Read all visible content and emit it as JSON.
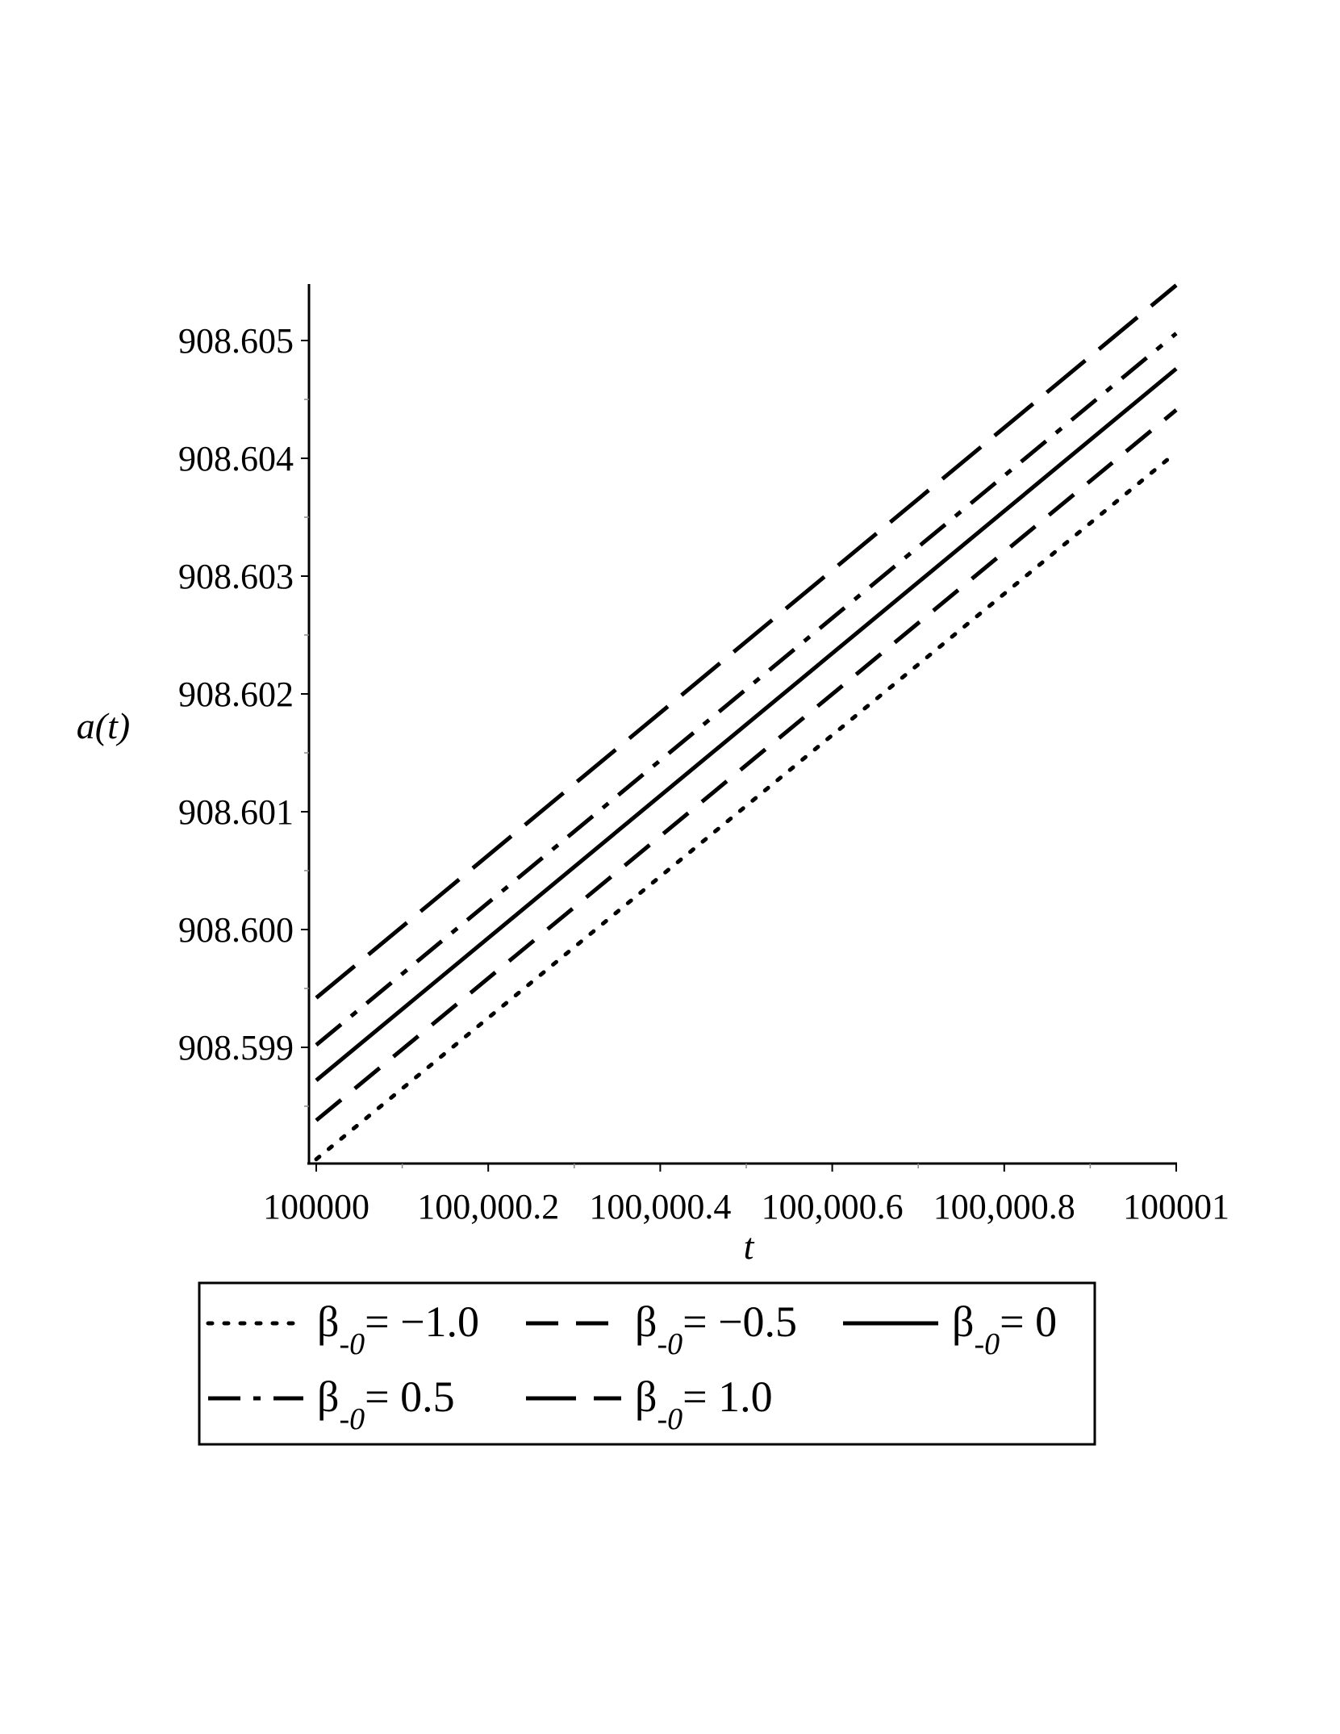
{
  "chart_data": {
    "type": "line",
    "title": "",
    "xlabel": "t",
    "ylabel": "a(t)",
    "xlim": [
      100000,
      100001
    ],
    "ylim": [
      908.598,
      908.6055
    ],
    "x_ticks": [
      {
        "value": 100000,
        "label": "100000"
      },
      {
        "value": 100000.2,
        "label": "100,000.2"
      },
      {
        "value": 100000.4,
        "label": "100,000.4"
      },
      {
        "value": 100000.6,
        "label": "100,000.6"
      },
      {
        "value": 100000.8,
        "label": "100,000.8"
      },
      {
        "value": 100001,
        "label": "100001"
      }
    ],
    "y_ticks": [
      {
        "value": 908.599,
        "label": "908.599"
      },
      {
        "value": 908.6,
        "label": "908.600"
      },
      {
        "value": 908.601,
        "label": "908.601"
      },
      {
        "value": 908.602,
        "label": "908.602"
      },
      {
        "value": 908.603,
        "label": "908.603"
      },
      {
        "value": 908.604,
        "label": "908.604"
      },
      {
        "value": 908.605,
        "label": "908.605"
      }
    ],
    "grid": false,
    "legend_placement": "bottom",
    "series": [
      {
        "name": "β_-0 = −1.0",
        "symbol": "β",
        "sub": "-0",
        "eq": "= −1.0",
        "style": "dotted",
        "x": [
          100000,
          100001
        ],
        "y": [
          908.59805,
          908.60405
        ]
      },
      {
        "name": "β_-0 = −0.5",
        "symbol": "β",
        "sub": "-0",
        "eq": "= −0.5",
        "style": "dashed",
        "x": [
          100000,
          100001
        ],
        "y": [
          908.59838,
          908.60441
        ]
      },
      {
        "name": "β_-0 = 0",
        "symbol": "β",
        "sub": "-0",
        "eq": "= 0",
        "style": "solid",
        "x": [
          100000,
          100001
        ],
        "y": [
          908.59872,
          908.60476
        ]
      },
      {
        "name": "β_-0 = 0.5",
        "symbol": "β",
        "sub": "-0",
        "eq": "= 0.5",
        "style": "dashdot",
        "x": [
          100000,
          100001
        ],
        "y": [
          908.59902,
          908.60506
        ]
      },
      {
        "name": "β_-0 = 1.0",
        "symbol": "β",
        "sub": "-0",
        "eq": "= 1.0",
        "style": "longdash",
        "x": [
          100000,
          100001
        ],
        "y": [
          908.59942,
          908.60547
        ]
      }
    ]
  }
}
